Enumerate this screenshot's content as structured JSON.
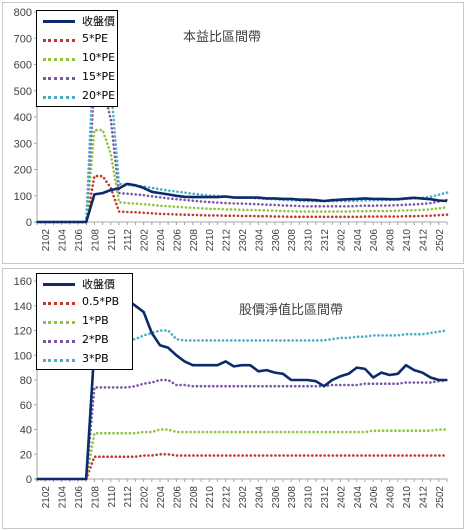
{
  "chart_data": [
    {
      "type": "line",
      "title": "本益比區間帶",
      "ylim": [
        0,
        800
      ],
      "yticks": [
        0,
        100,
        200,
        300,
        400,
        500,
        600,
        700,
        800
      ],
      "grid": false,
      "legend_position": "top-left",
      "x": [
        "2101",
        "2102",
        "2103",
        "2104",
        "2105",
        "2106",
        "2107",
        "2108",
        "2109",
        "2110",
        "2111",
        "2112",
        "2201",
        "2202",
        "2203",
        "2204",
        "2205",
        "2206",
        "2207",
        "2208",
        "2209",
        "2210",
        "2211",
        "2212",
        "2301",
        "2302",
        "2303",
        "2304",
        "2305",
        "2306",
        "2307",
        "2308",
        "2309",
        "2310",
        "2311",
        "2312",
        "2401",
        "2402",
        "2403",
        "2404",
        "2405",
        "2406",
        "2407",
        "2408",
        "2409",
        "2410",
        "2411",
        "2412",
        "2501",
        "2502",
        "2503"
      ],
      "xtick_labels": [
        "2102",
        "2104",
        "2106",
        "2108",
        "2110",
        "2112",
        "2202",
        "2204",
        "2206",
        "2208",
        "2210",
        "2212",
        "2302",
        "2304",
        "2306",
        "2308",
        "2310",
        "2312",
        "2402",
        "2404",
        "2406",
        "2408",
        "2410",
        "2412",
        "2502"
      ],
      "series": [
        {
          "name": "收盤價",
          "color": "#0d2a6b",
          "dash": "solid",
          "values": [
            0,
            0,
            0,
            0,
            0,
            0,
            0,
            105,
            110,
            122,
            128,
            145,
            140,
            130,
            115,
            110,
            105,
            100,
            96,
            95,
            95,
            95,
            95,
            97,
            93,
            93,
            93,
            93,
            90,
            90,
            88,
            88,
            85,
            85,
            83,
            80,
            83,
            85,
            87,
            88,
            90,
            88,
            88,
            87,
            87,
            90,
            92,
            89,
            87,
            82,
            80
          ]
        },
        {
          "name": "5*PE",
          "color": "#c0392b",
          "dash": "dot",
          "values": [
            0,
            0,
            0,
            0,
            0,
            0,
            0,
            175,
            175,
            130,
            40,
            38,
            37,
            35,
            33,
            31,
            30,
            29,
            28,
            27,
            26,
            25,
            25,
            24,
            24,
            23,
            23,
            22,
            22,
            21,
            21,
            20,
            20,
            20,
            20,
            20,
            20,
            20,
            20,
            20,
            21,
            21,
            21,
            21,
            21,
            22,
            22,
            23,
            24,
            26,
            28
          ]
        },
        {
          "name": "10*PE",
          "color": "#92c33e",
          "dash": "dot",
          "values": [
            0,
            0,
            0,
            0,
            0,
            0,
            0,
            350,
            350,
            260,
            75,
            72,
            70,
            68,
            65,
            62,
            60,
            58,
            56,
            54,
            52,
            50,
            50,
            48,
            48,
            46,
            46,
            45,
            44,
            43,
            42,
            41,
            40,
            40,
            40,
            40,
            40,
            40,
            40,
            41,
            41,
            42,
            42,
            42,
            43,
            44,
            45,
            46,
            48,
            52,
            56
          ]
        },
        {
          "name": "15*PE",
          "color": "#7a55a8",
          "dash": "dot",
          "values": [
            0,
            0,
            0,
            0,
            0,
            0,
            0,
            530,
            525,
            390,
            110,
            108,
            105,
            102,
            98,
            94,
            90,
            87,
            84,
            81,
            78,
            76,
            74,
            72,
            71,
            70,
            69,
            68,
            66,
            65,
            63,
            62,
            61,
            60,
            60,
            60,
            60,
            60,
            60,
            61,
            62,
            62,
            63,
            63,
            64,
            66,
            67,
            69,
            72,
            78,
            84
          ]
        },
        {
          "name": "20*PE",
          "color": "#4bacc6",
          "dash": "dot",
          "values": [
            0,
            0,
            0,
            0,
            0,
            0,
            0,
            700,
            700,
            520,
            145,
            142,
            138,
            135,
            130,
            125,
            120,
            116,
            112,
            108,
            104,
            101,
            99,
            97,
            95,
            93,
            92,
            90,
            88,
            86,
            84,
            83,
            81,
            80,
            80,
            80,
            80,
            80,
            80,
            81,
            82,
            83,
            84,
            84,
            85,
            88,
            90,
            92,
            96,
            104,
            112
          ]
        }
      ]
    },
    {
      "type": "line",
      "title": "股價淨值比區間帶",
      "ylim": [
        0,
        160
      ],
      "yticks": [
        0,
        20,
        40,
        60,
        80,
        100,
        120,
        140,
        160
      ],
      "grid": false,
      "legend_position": "top-left",
      "x": [
        "2101",
        "2102",
        "2103",
        "2104",
        "2105",
        "2106",
        "2107",
        "2108",
        "2109",
        "2110",
        "2111",
        "2112",
        "2201",
        "2202",
        "2203",
        "2204",
        "2205",
        "2206",
        "2207",
        "2208",
        "2209",
        "2210",
        "2211",
        "2212",
        "2301",
        "2302",
        "2303",
        "2304",
        "2305",
        "2306",
        "2307",
        "2308",
        "2309",
        "2310",
        "2311",
        "2312",
        "2401",
        "2402",
        "2403",
        "2404",
        "2405",
        "2406",
        "2407",
        "2408",
        "2409",
        "2410",
        "2411",
        "2412",
        "2501",
        "2502",
        "2503"
      ],
      "xtick_labels": [
        "2102",
        "2104",
        "2106",
        "2108",
        "2110",
        "2112",
        "2202",
        "2204",
        "2206",
        "2208",
        "2210",
        "2212",
        "2302",
        "2304",
        "2306",
        "2308",
        "2310",
        "2312",
        "2402",
        "2404",
        "2406",
        "2408",
        "2410",
        "2412",
        "2502"
      ],
      "series": [
        {
          "name": "收盤價",
          "color": "#0d2a6b",
          "dash": "solid",
          "values": [
            0,
            0,
            0,
            0,
            0,
            0,
            0,
            105,
            110,
            120,
            128,
            145,
            140,
            135,
            118,
            108,
            106,
            100,
            95,
            92,
            92,
            92,
            92,
            95,
            91,
            92,
            92,
            87,
            88,
            86,
            85,
            80,
            80,
            80,
            79,
            75,
            80,
            83,
            85,
            90,
            89,
            82,
            86,
            84,
            85,
            92,
            88,
            86,
            82,
            80,
            80
          ]
        },
        {
          "name": "0.5*PB",
          "color": "#c0392b",
          "dash": "dot",
          "values": [
            0,
            0,
            0,
            0,
            0,
            0,
            0,
            18,
            18,
            18,
            18,
            18,
            18,
            19,
            19,
            20,
            20,
            19,
            19,
            19,
            19,
            19,
            19,
            19,
            19,
            19,
            19,
            19,
            19,
            19,
            19,
            19,
            19,
            19,
            19,
            19,
            19,
            19,
            19,
            19,
            19,
            19,
            19,
            19,
            19,
            19,
            19,
            19,
            19,
            19,
            19
          ]
        },
        {
          "name": "1*PB",
          "color": "#92c33e",
          "dash": "dot",
          "values": [
            0,
            0,
            0,
            0,
            0,
            0,
            0,
            37,
            37,
            37,
            37,
            37,
            37,
            38,
            38,
            40,
            40,
            38,
            38,
            38,
            38,
            38,
            38,
            38,
            38,
            38,
            38,
            38,
            38,
            38,
            38,
            38,
            38,
            38,
            38,
            38,
            38,
            38,
            38,
            38,
            38,
            39,
            39,
            39,
            39,
            39,
            39,
            39,
            39,
            40,
            40
          ]
        },
        {
          "name": "2*PB",
          "color": "#7a55a8",
          "dash": "dot",
          "values": [
            0,
            0,
            0,
            0,
            0,
            0,
            0,
            74,
            74,
            74,
            74,
            74,
            75,
            77,
            78,
            80,
            80,
            76,
            76,
            75,
            75,
            75,
            75,
            75,
            75,
            75,
            75,
            75,
            75,
            75,
            75,
            75,
            75,
            75,
            75,
            75,
            76,
            76,
            76,
            76,
            77,
            77,
            77,
            77,
            77,
            78,
            78,
            78,
            78,
            79,
            80
          ]
        },
        {
          "name": "3*PB",
          "color": "#4bacc6",
          "dash": "dot",
          "values": [
            0,
            0,
            0,
            0,
            0,
            0,
            0,
            110,
            111,
            111,
            112,
            112,
            113,
            116,
            118,
            120,
            120,
            113,
            112,
            112,
            112,
            112,
            112,
            112,
            112,
            112,
            112,
            112,
            112,
            112,
            112,
            112,
            112,
            112,
            112,
            112,
            113,
            114,
            114,
            115,
            115,
            116,
            116,
            116,
            116,
            117,
            117,
            117,
            118,
            119,
            120
          ]
        }
      ]
    }
  ]
}
